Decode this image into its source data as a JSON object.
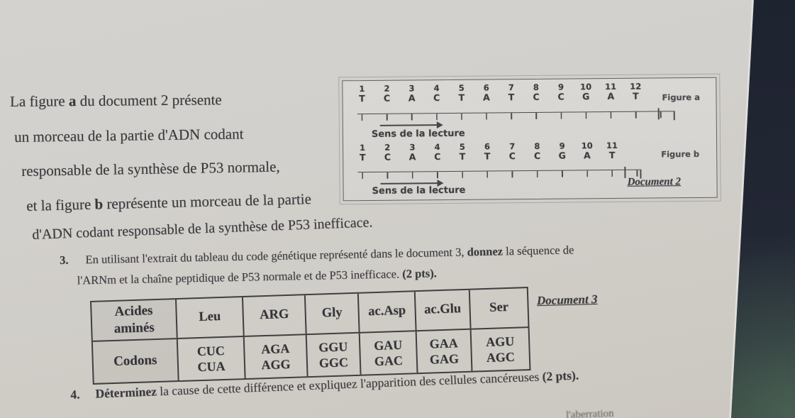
{
  "intro": {
    "line1": {
      "pre": "La figure ",
      "bold": "a",
      "post": " du document 2 présente"
    },
    "line2": "un morceau de la partie d'ADN codant",
    "line3": "responsable de la synthèse de P53 normale,",
    "line4": {
      "pre": "et la figure ",
      "bold": "b",
      "post": " représente un morceau de la partie"
    },
    "line5": "d'ADN codant responsable de la synthèse de P53 inefficace."
  },
  "document2": {
    "figure_a": {
      "label": "Figure a",
      "numbers": [
        "1",
        "2",
        "3",
        "4",
        "5",
        "6",
        "7",
        "8",
        "9",
        "10",
        "11",
        "12"
      ],
      "bases": [
        "T",
        "C",
        "A",
        "C",
        "T",
        "A",
        "T",
        "C",
        "C",
        "G",
        "A",
        "T"
      ]
    },
    "figure_b": {
      "label": "Figure b",
      "numbers": [
        "1",
        "2",
        "3",
        "4",
        "5",
        "6",
        "7",
        "8",
        "9",
        "10",
        "11"
      ],
      "bases": [
        "T",
        "C",
        "A",
        "C",
        "T",
        "T",
        "C",
        "C",
        "G",
        "A",
        "T"
      ]
    },
    "reading_label_a": "Sens de la lecture",
    "reading_label_b": "Sens de la lecture",
    "doc_label": "Document 2"
  },
  "questions": {
    "q3": {
      "number": "3.",
      "part1": "En utilisant l'extrait du tableau du code génétique représenté dans le document 3, ",
      "bold1": "donnez",
      "part2": "  la séquence de",
      "line2": "l'ARNm  et la chaîne peptidique de P53 normale et de P53 inefficace. ",
      "points": "(2 pts)."
    },
    "q4": {
      "number": "4.",
      "bold1": "Déterminez",
      "part1": " la cause de cette différence et expliquez l'apparition des cellules cancéreuses ",
      "points": "(2 pts)."
    }
  },
  "document3": {
    "doc_label": "Document 3",
    "table": {
      "row_header_top": {
        "line1": "Acides",
        "line2": "aminés"
      },
      "row_header_bottom": "Codons",
      "amino_acids": [
        "Leu",
        "ARG",
        "Gly",
        "ac.Asp",
        "ac.Glu",
        "Ser"
      ],
      "codons": [
        [
          "CUC",
          "CUA"
        ],
        [
          "AGA",
          "AGG"
        ],
        [
          "GGU",
          "GGC"
        ],
        [
          "GAU",
          "GAC"
        ],
        [
          "GAA",
          "GAG"
        ],
        [
          "AGU",
          "AGC"
        ]
      ]
    }
  },
  "faint_fragment": "l'aberration",
  "colors": {
    "paper": "#d2d0cc",
    "ink": "#3a3a3d",
    "photo_background": "#232833"
  }
}
